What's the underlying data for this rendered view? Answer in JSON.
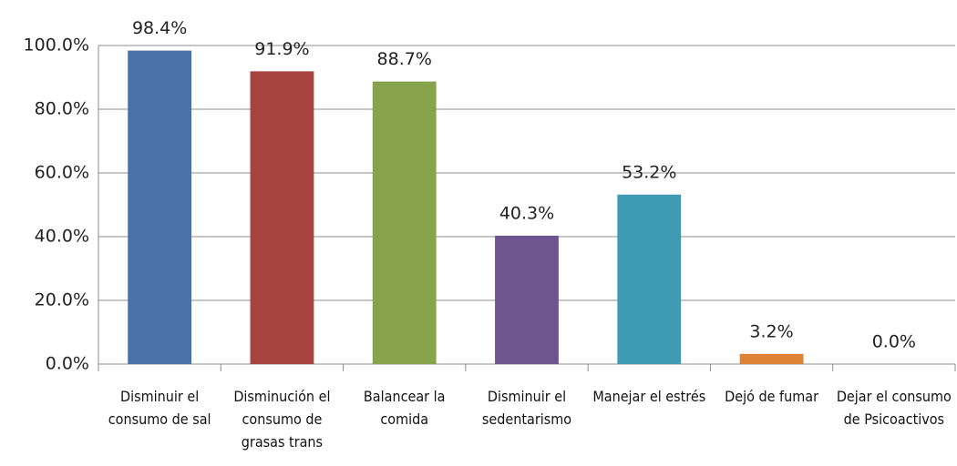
{
  "chart_data": {
    "type": "bar",
    "categories": [
      "Disminuir el consumo de sal",
      "Disminución el consumo de grasas trans",
      "Balancear la comida",
      "Disminuir el sedentarismo",
      "Manejar el estrés",
      "Dejó de fumar",
      "Dejar el consumo de Psicoactivos"
    ],
    "values": [
      98.4,
      91.9,
      88.7,
      40.3,
      53.2,
      3.2,
      0.0
    ],
    "value_labels": [
      "98.4%",
      "91.9%",
      "88.7%",
      "40.3%",
      "53.2%",
      "3.2%",
      "0.0%"
    ],
    "colors": [
      "#4a72a8",
      "#a8443f",
      "#87a34b",
      "#6f5590",
      "#3f9bb3",
      "#de8237",
      "#4a72a8"
    ],
    "ylim": [
      0,
      100
    ],
    "yticks": [
      {
        "value": 0,
        "label": "0.0%"
      },
      {
        "value": 20,
        "label": "20.0%"
      },
      {
        "value": 40,
        "label": "40.0%"
      },
      {
        "value": 60,
        "label": "60.0%"
      },
      {
        "value": 80,
        "label": "80.0%"
      },
      {
        "value": 100,
        "label": "100.0%"
      }
    ],
    "grid": true
  }
}
